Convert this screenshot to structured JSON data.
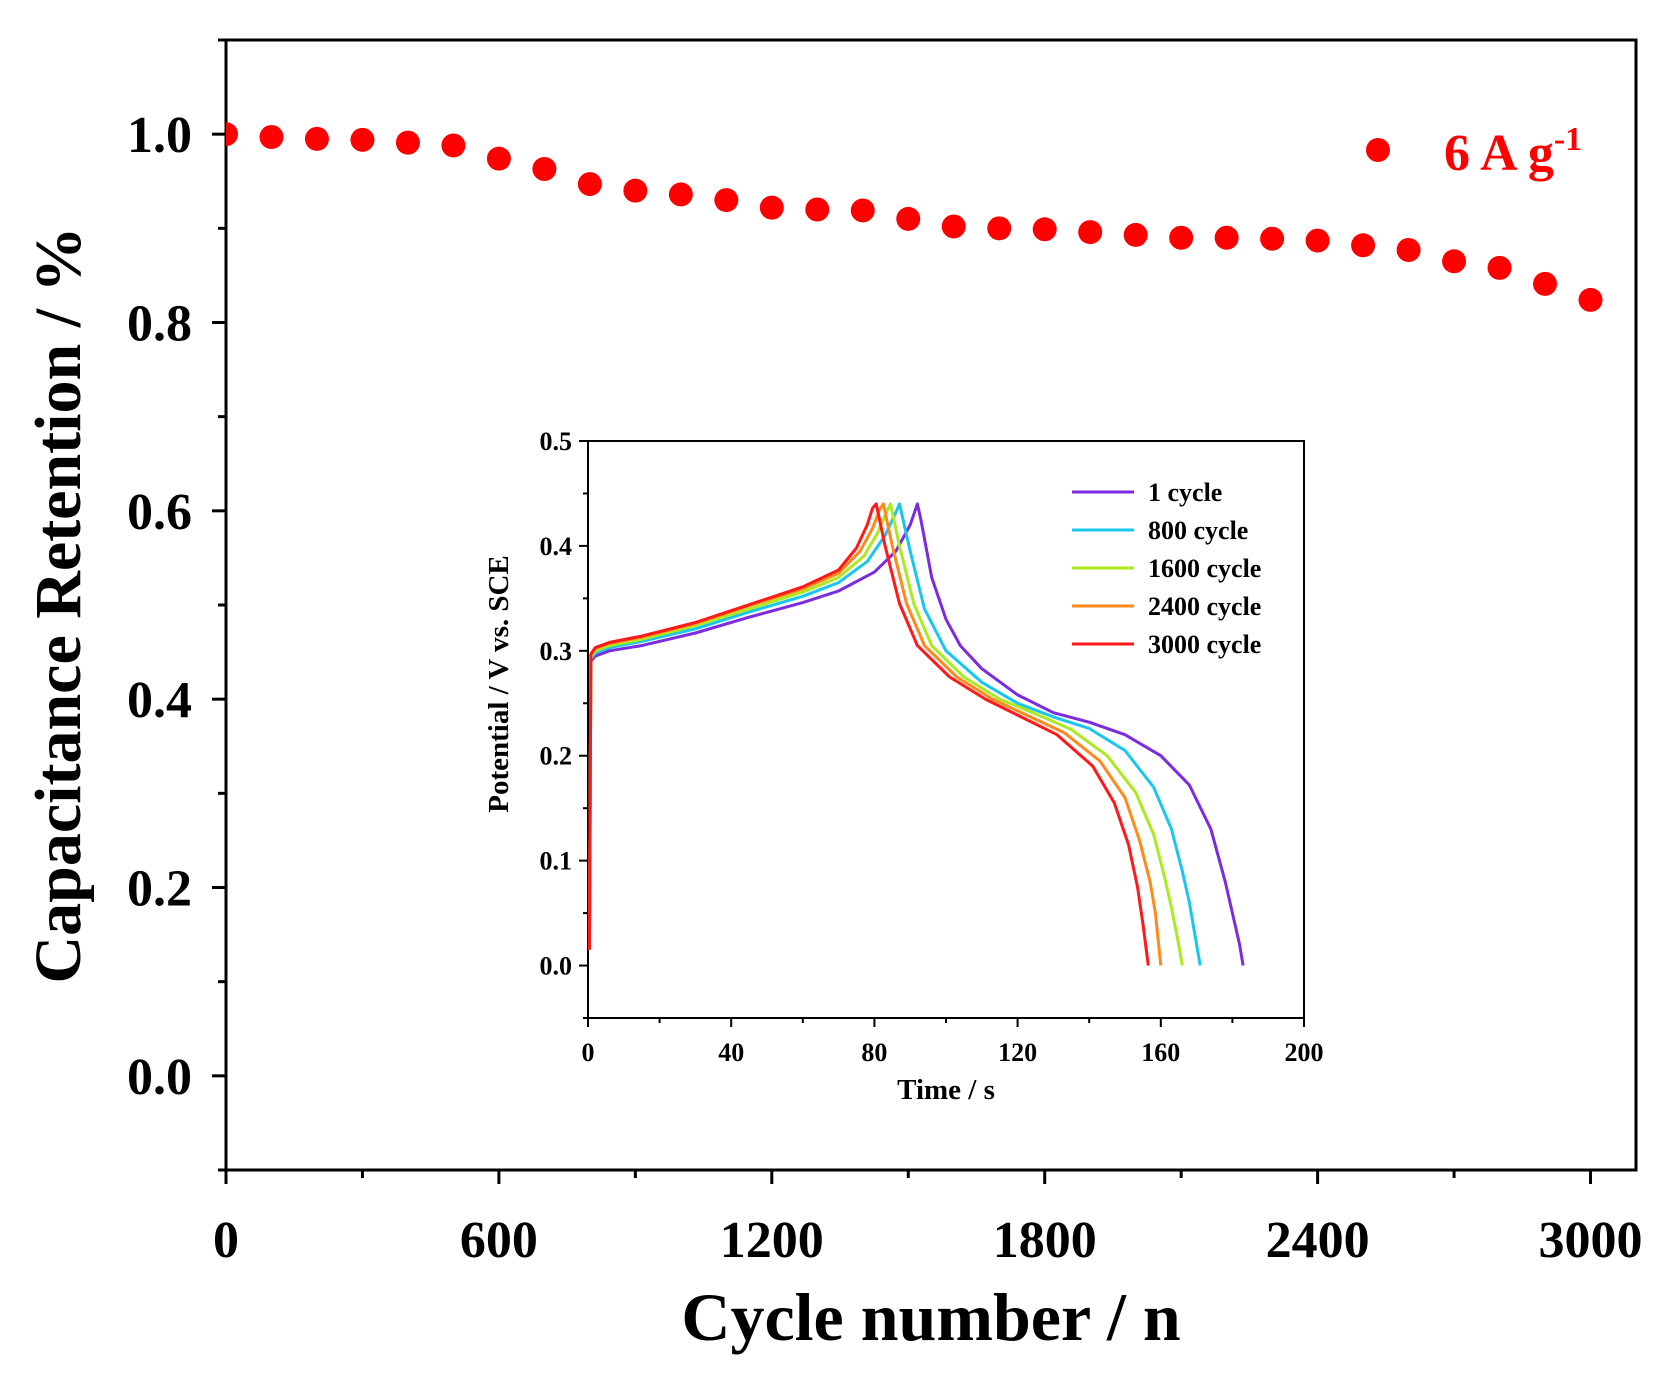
{
  "chart_data": [
    {
      "type": "scatter",
      "title": "",
      "xlabel": "Cycle number / n",
      "ylabel": "Capacitance Retention / %",
      "xlim": [
        0,
        3100
      ],
      "ylim": [
        -0.1,
        1.1
      ],
      "xticks": [
        0,
        600,
        1200,
        1800,
        2400,
        3000
      ],
      "yticks": [
        0.0,
        0.2,
        0.4,
        0.6,
        0.8,
        1.0
      ],
      "xtick_labels": [
        "0",
        "600",
        "1200",
        "1800",
        "2400",
        "3000"
      ],
      "ytick_labels": [
        "0.0",
        "0.2",
        "0.4",
        "0.6",
        "0.8",
        "1.0"
      ],
      "legend": {
        "position": "top-right",
        "label_main": "6 A g",
        "label_sup": "-1"
      },
      "series": [
        {
          "name": "6 A g-1",
          "color": "#ff0000",
          "x": [
            0,
            100,
            200,
            300,
            400,
            500,
            600,
            700,
            800,
            900,
            1000,
            1100,
            1200,
            1300,
            1400,
            1500,
            1600,
            1700,
            1800,
            1900,
            2000,
            2100,
            2200,
            2300,
            2400,
            2500,
            2600,
            2700,
            2800,
            2900,
            3000
          ],
          "y": [
            1.0,
            0.997,
            0.995,
            0.994,
            0.991,
            0.988,
            0.974,
            0.963,
            0.947,
            0.94,
            0.936,
            0.93,
            0.922,
            0.92,
            0.919,
            0.91,
            0.902,
            0.9,
            0.899,
            0.896,
            0.893,
            0.89,
            0.89,
            0.889,
            0.887,
            0.882,
            0.877,
            0.865,
            0.858,
            0.841,
            0.824
          ]
        }
      ]
    },
    {
      "type": "line",
      "title": "",
      "xlabel": "Time / s",
      "ylabel": "Potential / V vs. SCE",
      "xlim": [
        0,
        200
      ],
      "ylim": [
        -0.05,
        0.5
      ],
      "xticks": [
        0,
        40,
        80,
        120,
        160,
        200
      ],
      "yticks": [
        0.0,
        0.1,
        0.2,
        0.3,
        0.4,
        0.5
      ],
      "xtick_labels": [
        "0",
        "40",
        "80",
        "120",
        "160",
        "200"
      ],
      "ytick_labels": [
        "0.0",
        "0.1",
        "0.2",
        "0.3",
        "0.4",
        "0.5"
      ],
      "legend": {
        "position": "top-right"
      },
      "series": [
        {
          "name": "1 cycle",
          "color": "#7b2be0",
          "x": [
            0.4,
            0.8,
            2,
            6,
            15,
            30,
            45,
            60,
            70,
            80,
            86,
            90,
            92,
            93,
            96,
            100,
            104,
            110,
            120,
            130,
            140,
            150,
            160,
            168,
            174,
            178,
            180,
            182,
            183
          ],
          "y": [
            0.015,
            0.29,
            0.295,
            0.3,
            0.305,
            0.317,
            0.332,
            0.346,
            0.357,
            0.375,
            0.395,
            0.42,
            0.44,
            0.425,
            0.37,
            0.33,
            0.305,
            0.283,
            0.258,
            0.241,
            0.232,
            0.22,
            0.2,
            0.172,
            0.13,
            0.08,
            0.05,
            0.02,
            0.0
          ]
        },
        {
          "name": "800 cycle",
          "color": "#19c6ee",
          "x": [
            0.4,
            0.8,
            2,
            6,
            15,
            30,
            45,
            60,
            70,
            78,
            83,
            86,
            87,
            90,
            94,
            100,
            110,
            120,
            130,
            140,
            150,
            158,
            163,
            166,
            168,
            170,
            171
          ],
          "y": [
            0.015,
            0.292,
            0.298,
            0.303,
            0.309,
            0.321,
            0.337,
            0.352,
            0.365,
            0.385,
            0.41,
            0.432,
            0.44,
            0.395,
            0.34,
            0.3,
            0.27,
            0.25,
            0.237,
            0.226,
            0.205,
            0.17,
            0.13,
            0.09,
            0.06,
            0.02,
            0.0
          ]
        },
        {
          "name": "1600 cycle",
          "color": "#aaea1f",
          "x": [
            0.4,
            0.8,
            2,
            6,
            15,
            30,
            45,
            60,
            70,
            77,
            81,
            83.5,
            84.5,
            87,
            91,
            96,
            105,
            115,
            125,
            135,
            145,
            153,
            158,
            161,
            163,
            165,
            166
          ],
          "y": [
            0.015,
            0.294,
            0.3,
            0.305,
            0.311,
            0.324,
            0.34,
            0.356,
            0.37,
            0.39,
            0.413,
            0.433,
            0.44,
            0.4,
            0.345,
            0.305,
            0.275,
            0.254,
            0.24,
            0.225,
            0.2,
            0.165,
            0.125,
            0.085,
            0.055,
            0.02,
            0.0
          ]
        },
        {
          "name": "2400 cycle",
          "color": "#ff8a1a",
          "x": [
            0.4,
            0.8,
            2,
            6,
            15,
            30,
            45,
            60,
            70,
            76,
            79.5,
            81.5,
            82.5,
            85,
            89,
            94,
            103,
            113,
            123,
            133,
            143,
            150,
            154,
            157,
            158.5,
            160
          ],
          "y": [
            0.015,
            0.296,
            0.302,
            0.307,
            0.313,
            0.326,
            0.343,
            0.359,
            0.374,
            0.395,
            0.417,
            0.435,
            0.44,
            0.4,
            0.345,
            0.305,
            0.275,
            0.254,
            0.238,
            0.222,
            0.195,
            0.16,
            0.12,
            0.08,
            0.05,
            0.0
          ]
        },
        {
          "name": "3000 cycle",
          "color": "#ff1a1a",
          "x": [
            0.4,
            0.8,
            2,
            6,
            15,
            30,
            45,
            60,
            70,
            75,
            78,
            79.5,
            80.5,
            83,
            87,
            92,
            101,
            111,
            121,
            131,
            141,
            147,
            151,
            153.5,
            155,
            156.5
          ],
          "y": [
            0.015,
            0.297,
            0.303,
            0.308,
            0.314,
            0.327,
            0.344,
            0.361,
            0.377,
            0.398,
            0.42,
            0.436,
            0.44,
            0.4,
            0.345,
            0.305,
            0.275,
            0.254,
            0.237,
            0.22,
            0.19,
            0.155,
            0.115,
            0.075,
            0.04,
            0.0
          ]
        }
      ]
    }
  ]
}
